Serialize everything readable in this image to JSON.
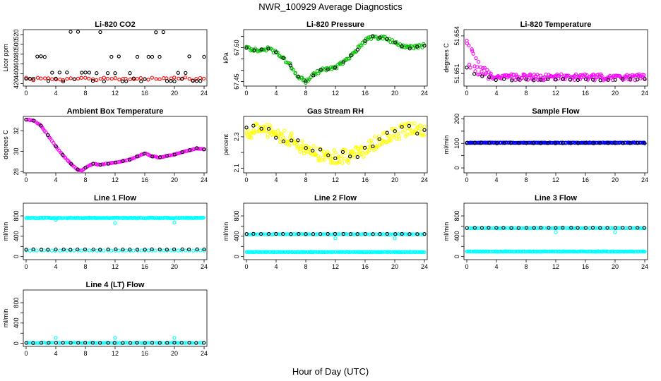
{
  "page_title": "NWR_100929  Average Diagnostics",
  "x_axis_label": "Hour of Day (UTC)",
  "colors": {
    "black": "#000000",
    "red": "#ff0000",
    "green": "#00c000",
    "magenta": "#ff00ff",
    "yellow": "#ffff00",
    "blue": "#0000ff",
    "cyan": "#00ffff"
  },
  "chart_data": [
    {
      "id": "co2",
      "type": "scatter",
      "title": "Li-820 CO2",
      "ylabel": "Licor ppm",
      "xlim": [
        0,
        24
      ],
      "xticks": [
        0,
        4,
        8,
        12,
        16,
        20,
        24
      ],
      "ylim": [
        415,
        530
      ],
      "yticks": [
        420,
        440,
        460,
        480,
        500,
        520
      ],
      "series": [
        {
          "name": "avg",
          "color": "red",
          "kind": "band",
          "y": 430,
          "spread": 2,
          "noise": 1.5,
          "density": 1
        },
        {
          "name": "diag",
          "color": "black",
          "kind": "levels",
          "levels": [
            425,
            430,
            442,
            475,
            525
          ],
          "step": 0.5,
          "seed": 3
        }
      ]
    },
    {
      "id": "pressure",
      "type": "scatter",
      "title": "Li-820 Pressure",
      "ylabel": "kPa",
      "xlim": [
        0,
        24
      ],
      "xticks": [
        0,
        4,
        8,
        12,
        16,
        20,
        24
      ],
      "ylim": [
        67.43,
        67.68
      ],
      "yticks": [
        67.45,
        67.5,
        67.55,
        67.6,
        67.65
      ],
      "ytick_labels": [
        "67.45",
        "",
        "",
        "67.60",
        ""
      ],
      "series": [
        {
          "name": "avg",
          "color": "green",
          "kind": "curve",
          "pts": [
            [
              0,
              67.6
            ],
            [
              1,
              67.59
            ],
            [
              3,
              67.595
            ],
            [
              4,
              67.58
            ],
            [
              6,
              67.52
            ],
            [
              7,
              67.47
            ],
            [
              8,
              67.45
            ],
            [
              9,
              67.48
            ],
            [
              10,
              67.5
            ],
            [
              12,
              67.51
            ],
            [
              14,
              67.56
            ],
            [
              16,
              67.63
            ],
            [
              17,
              67.65
            ],
            [
              19,
              67.64
            ],
            [
              20,
              67.62
            ],
            [
              22,
              67.6
            ],
            [
              24,
              67.61
            ]
          ],
          "noise": 0.008,
          "density": 3
        },
        {
          "name": "diag",
          "color": "black",
          "kind": "curve",
          "pts": [
            [
              0,
              67.6
            ],
            [
              1,
              67.59
            ],
            [
              3,
              67.595
            ],
            [
              4,
              67.58
            ],
            [
              6,
              67.52
            ],
            [
              7,
              67.47
            ],
            [
              8,
              67.45
            ],
            [
              9,
              67.48
            ],
            [
              10,
              67.5
            ],
            [
              12,
              67.51
            ],
            [
              14,
              67.56
            ],
            [
              16,
              67.63
            ],
            [
              17,
              67.65
            ],
            [
              19,
              67.64
            ],
            [
              20,
              67.62
            ],
            [
              22,
              67.6
            ],
            [
              24,
              67.61
            ]
          ],
          "noise": 0.004,
          "density": 0.5
        }
      ]
    },
    {
      "id": "temperature",
      "type": "scatter",
      "title": "Li-820 Temperature",
      "ylabel": "degrees C",
      "xlim": [
        0,
        24
      ],
      "xticks": [
        0,
        4,
        8,
        12,
        16,
        20,
        24
      ],
      "ylim": [
        51.65,
        51.6545
      ],
      "yticks": [
        51.651,
        51.654
      ],
      "ytick_labels": [
        "51.651",
        "51.654"
      ],
      "series": [
        {
          "name": "avg",
          "color": "magenta",
          "kind": "decay",
          "base": 51.6507,
          "amp": 0.0025,
          "tau": 1.2,
          "noise": 0.0012,
          "density": 4
        },
        {
          "name": "diag",
          "color": "black",
          "kind": "decay",
          "base": 51.6505,
          "amp": 0.0012,
          "tau": 1.5,
          "noise": 0.0004,
          "density": 0.5
        }
      ]
    },
    {
      "id": "box_temp",
      "type": "scatter",
      "title": "Ambient Box Temperature",
      "ylabel": "degrees C",
      "xlim": [
        0,
        24
      ],
      "xticks": [
        0,
        4,
        8,
        12,
        16,
        20,
        24
      ],
      "ylim": [
        27.9,
        33.4
      ],
      "yticks": [
        28,
        30,
        32
      ],
      "series": [
        {
          "name": "avg",
          "color": "magenta",
          "kind": "curve",
          "pts": [
            [
              0,
              33.1
            ],
            [
              1,
              33.0
            ],
            [
              2,
              32.5
            ],
            [
              3,
              31.5
            ],
            [
              4,
              30.5
            ],
            [
              5,
              29.6
            ],
            [
              6,
              28.8
            ],
            [
              7,
              28.2
            ],
            [
              7.5,
              28.1
            ],
            [
              8,
              28.4
            ],
            [
              9,
              28.8
            ],
            [
              10,
              28.7
            ],
            [
              12,
              28.9
            ],
            [
              14,
              29.2
            ],
            [
              16,
              29.8
            ],
            [
              17,
              29.5
            ],
            [
              18,
              29.4
            ],
            [
              20,
              29.7
            ],
            [
              22,
              30.1
            ],
            [
              23,
              30.3
            ],
            [
              24,
              30.2
            ]
          ],
          "noise": 0.03,
          "density": 3
        },
        {
          "name": "diag",
          "color": "black",
          "kind": "curve",
          "pts": [
            [
              0,
              33.1
            ],
            [
              1,
              33.0
            ],
            [
              2,
              32.5
            ],
            [
              3,
              31.5
            ],
            [
              4,
              30.5
            ],
            [
              5,
              29.6
            ],
            [
              6,
              28.8
            ],
            [
              7,
              28.2
            ],
            [
              7.5,
              28.1
            ],
            [
              8,
              28.4
            ],
            [
              9,
              28.8
            ],
            [
              10,
              28.7
            ],
            [
              12,
              28.9
            ],
            [
              14,
              29.2
            ],
            [
              16,
              29.8
            ],
            [
              17,
              29.5
            ],
            [
              18,
              29.4
            ],
            [
              20,
              29.7
            ],
            [
              22,
              30.1
            ],
            [
              23,
              30.3
            ],
            [
              24,
              30.2
            ]
          ],
          "noise": 0.02,
          "density": 0.5
        }
      ]
    },
    {
      "id": "rh",
      "type": "scatter",
      "title": "Gas Stream RH",
      "ylabel": "percent",
      "xlim": [
        0,
        24
      ],
      "xticks": [
        0,
        4,
        8,
        12,
        16,
        20,
        24
      ],
      "ylim": [
        2.07,
        2.43
      ],
      "yticks": [
        2.1,
        2.2,
        2.3
      ],
      "ytick_labels": [
        "2.1",
        "",
        "2.3"
      ],
      "series": [
        {
          "name": "avg",
          "color": "yellow",
          "kind": "curve",
          "pts": [
            [
              0,
              2.33
            ],
            [
              2,
              2.35
            ],
            [
              4,
              2.32
            ],
            [
              6,
              2.28
            ],
            [
              8,
              2.22
            ],
            [
              10,
              2.19
            ],
            [
              12,
              2.17
            ],
            [
              14,
              2.18
            ],
            [
              16,
              2.22
            ],
            [
              18,
              2.28
            ],
            [
              20,
              2.32
            ],
            [
              22,
              2.35
            ],
            [
              24,
              2.34
            ]
          ],
          "noise": 0.045,
          "density": 5
        },
        {
          "name": "diag",
          "color": "black",
          "kind": "curve",
          "pts": [
            [
              0,
              2.33
            ],
            [
              2,
              2.36
            ],
            [
              4,
              2.32
            ],
            [
              6,
              2.28
            ],
            [
              8,
              2.22
            ],
            [
              10,
              2.19
            ],
            [
              12,
              2.17
            ],
            [
              14,
              2.18
            ],
            [
              16,
              2.22
            ],
            [
              18,
              2.28
            ],
            [
              20,
              2.33
            ],
            [
              22,
              2.36
            ],
            [
              24,
              2.34
            ]
          ],
          "noise": 0.03,
          "density": 0.5
        }
      ]
    },
    {
      "id": "sample_flow",
      "type": "scatter",
      "title": "Sample Flow",
      "ylabel": "ml/min",
      "xlim": [
        0,
        24
      ],
      "xticks": [
        0,
        4,
        8,
        12,
        16,
        20,
        24
      ],
      "ylim": [
        -20,
        210
      ],
      "yticks": [
        0,
        50,
        100,
        150,
        200
      ],
      "ytick_labels": [
        "0",
        "",
        "100",
        "",
        "200"
      ],
      "series": [
        {
          "name": "avg",
          "color": "blue",
          "kind": "band",
          "y": 103,
          "spread": 1,
          "noise": 0.5,
          "density": 4
        },
        {
          "name": "diag",
          "color": "black",
          "kind": "band",
          "y": 101,
          "spread": 0.5,
          "noise": 0.5,
          "density": 0.5
        }
      ]
    },
    {
      "id": "line1",
      "type": "scatter",
      "title": "Line 1 Flow",
      "ylabel": "ml/min",
      "xlim": [
        0,
        24
      ],
      "xticks": [
        0,
        4,
        8,
        12,
        16,
        20,
        24
      ],
      "ylim": [
        -60,
        1050
      ],
      "yticks": [
        0,
        200,
        400,
        600,
        800
      ],
      "ytick_labels": [
        "0",
        "",
        "400",
        "",
        "800"
      ],
      "series": [
        {
          "name": "cyan_high",
          "color": "cyan",
          "kind": "band",
          "y": 760,
          "spread": 5,
          "noise": 3,
          "density": 4,
          "outliers": [
            [
              4,
              720
            ],
            [
              12,
              660
            ],
            [
              20,
              670
            ]
          ]
        },
        {
          "name": "cyan_low",
          "color": "cyan",
          "kind": "band",
          "y": 120,
          "spread": 3,
          "noise": 2,
          "density": 1
        },
        {
          "name": "diag",
          "color": "black",
          "kind": "band",
          "y": 140,
          "spread": 2,
          "noise": 2,
          "density": 0.5
        }
      ]
    },
    {
      "id": "line2",
      "type": "scatter",
      "title": "Line 2 Flow",
      "ylabel": "ml/min",
      "xlim": [
        0,
        24
      ],
      "xticks": [
        0,
        4,
        8,
        12,
        16,
        20,
        24
      ],
      "ylim": [
        -60,
        1050
      ],
      "yticks": [
        0,
        200,
        400,
        600,
        800
      ],
      "ytick_labels": [
        "0",
        "",
        "400",
        "",
        "800"
      ],
      "series": [
        {
          "name": "cyan_high",
          "color": "cyan",
          "kind": "band",
          "y": 440,
          "spread": 3,
          "noise": 2,
          "density": 2,
          "outliers": [
            [
              12,
              360
            ],
            [
              20,
              360
            ]
          ]
        },
        {
          "name": "cyan_low",
          "color": "cyan",
          "kind": "band",
          "y": 90,
          "spread": 3,
          "noise": 2,
          "density": 4
        },
        {
          "name": "diag",
          "color": "black",
          "kind": "band",
          "y": 445,
          "spread": 2,
          "noise": 2,
          "density": 0.5
        }
      ]
    },
    {
      "id": "line3",
      "type": "scatter",
      "title": "Line 3 Flow",
      "ylabel": "ml/min",
      "xlim": [
        0,
        24
      ],
      "xticks": [
        0,
        4,
        8,
        12,
        16,
        20,
        24
      ],
      "ylim": [
        -60,
        1050
      ],
      "yticks": [
        0,
        200,
        400,
        600,
        800
      ],
      "ytick_labels": [
        "0",
        "",
        "400",
        "",
        "800"
      ],
      "series": [
        {
          "name": "cyan_high",
          "color": "cyan",
          "kind": "band",
          "y": 560,
          "spread": 3,
          "noise": 2,
          "density": 2,
          "outliers": [
            [
              12,
              480
            ],
            [
              20,
              480
            ]
          ]
        },
        {
          "name": "cyan_low",
          "color": "cyan",
          "kind": "band",
          "y": 100,
          "spread": 3,
          "noise": 2,
          "density": 4
        },
        {
          "name": "diag",
          "color": "black",
          "kind": "band",
          "y": 565,
          "spread": 2,
          "noise": 2,
          "density": 0.5
        }
      ]
    },
    {
      "id": "line4",
      "type": "scatter",
      "title": "Line 4 (LT) Flow",
      "ylabel": "ml/min",
      "xlim": [
        0,
        24
      ],
      "xticks": [
        0,
        4,
        8,
        12,
        16,
        20,
        24
      ],
      "ylim": [
        -60,
        1050
      ],
      "yticks": [
        0,
        200,
        400,
        600,
        800
      ],
      "ytick_labels": [
        "0",
        "",
        "400",
        "",
        "800"
      ],
      "series": [
        {
          "name": "cyan",
          "color": "cyan",
          "kind": "band",
          "y": 10,
          "spread": 3,
          "noise": 2,
          "density": 2,
          "outliers": [
            [
              4,
              110
            ],
            [
              12,
              110
            ],
            [
              20,
              110
            ]
          ]
        },
        {
          "name": "diag",
          "color": "black",
          "kind": "band",
          "y": 10,
          "spread": 2,
          "noise": 2,
          "density": 0.5
        }
      ]
    }
  ]
}
